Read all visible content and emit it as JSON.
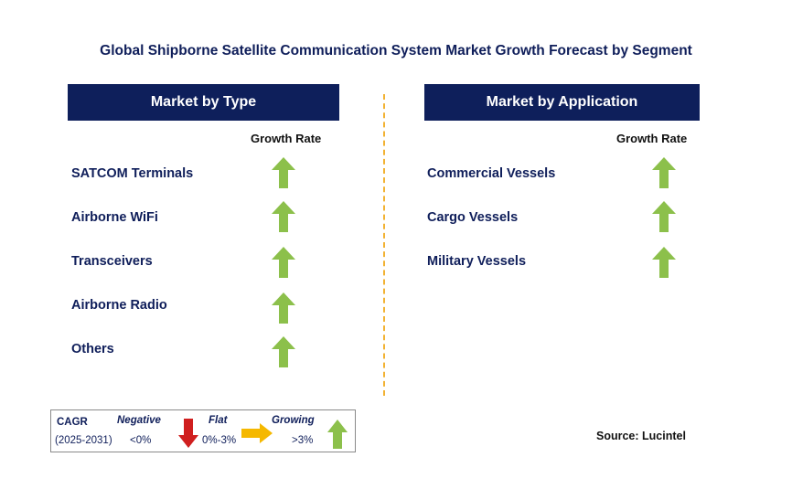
{
  "title": "Global Shipborne Satellite Communication System Market Growth Forecast by Segment",
  "left_panel": {
    "header": "Market by Type",
    "column_label": "Growth Rate",
    "items": [
      {
        "label": "SATCOM Terminals",
        "trend": "growing"
      },
      {
        "label": "Airborne WiFi",
        "trend": "growing"
      },
      {
        "label": "Transceivers",
        "trend": "growing"
      },
      {
        "label": "Airborne Radio",
        "trend": "growing"
      },
      {
        "label": "Others",
        "trend": "growing"
      }
    ]
  },
  "right_panel": {
    "header": "Market by Application",
    "column_label": "Growth Rate",
    "items": [
      {
        "label": "Commercial Vessels",
        "trend": "growing"
      },
      {
        "label": "Cargo Vessels",
        "trend": "growing"
      },
      {
        "label": "Military Vessels",
        "trend": "growing"
      }
    ]
  },
  "legend": {
    "cagr_label": "CAGR",
    "period": "(2025-2031)",
    "negative_label": "Negative",
    "negative_range": "<0%",
    "flat_label": "Flat",
    "flat_range": "0%-3%",
    "growing_label": "Growing",
    "growing_range": ">3%"
  },
  "source": "Source: Lucintel",
  "colors": {
    "header_bg": "#0e1f5b",
    "growing": "#8cc04b",
    "negative": "#d01f1f",
    "flat": "#f5b800",
    "divider": "#f2b233"
  },
  "icons": {
    "growing": "up-arrow-icon",
    "negative": "down-arrow-icon",
    "flat": "right-arrow-icon"
  }
}
